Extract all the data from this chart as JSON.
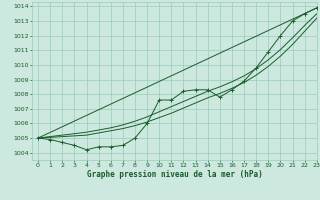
{
  "title": "Graphe pression niveau de la mer (hPa)",
  "bg_color": "#cce8df",
  "grid_color": "#99ccbb",
  "line_color": "#1a5c2a",
  "xlim": [
    -0.5,
    23
  ],
  "ylim": [
    1003.5,
    1014.3
  ],
  "xticks": [
    0,
    1,
    2,
    3,
    4,
    5,
    6,
    7,
    8,
    9,
    10,
    11,
    12,
    13,
    14,
    15,
    16,
    17,
    18,
    19,
    20,
    21,
    22,
    23
  ],
  "yticks": [
    1004,
    1005,
    1006,
    1007,
    1008,
    1009,
    1010,
    1011,
    1012,
    1013,
    1014
  ],
  "series_marker": {
    "x": [
      0,
      1,
      2,
      3,
      4,
      5,
      6,
      7,
      8,
      9,
      10,
      11,
      12,
      13,
      14,
      15,
      16,
      17,
      18,
      19,
      20,
      21,
      22,
      23
    ],
    "y": [
      1005.0,
      1004.9,
      1004.7,
      1004.5,
      1004.2,
      1004.4,
      1004.4,
      1004.5,
      1005.0,
      1006.0,
      1007.6,
      1007.6,
      1008.2,
      1008.3,
      1008.3,
      1007.8,
      1008.3,
      1008.9,
      1009.8,
      1010.9,
      1012.0,
      1013.0,
      1013.5,
      1013.9
    ]
  },
  "series_smooth1": {
    "x": [
      0,
      1,
      2,
      3,
      4,
      5,
      6,
      7,
      8,
      9,
      10,
      11,
      12,
      13,
      14,
      15,
      16,
      17,
      18,
      19,
      20,
      21,
      22,
      23
    ],
    "y": [
      1005.0,
      1005.05,
      1005.1,
      1005.15,
      1005.2,
      1005.35,
      1005.5,
      1005.65,
      1005.85,
      1006.1,
      1006.4,
      1006.7,
      1007.05,
      1007.4,
      1007.75,
      1008.05,
      1008.4,
      1008.8,
      1009.3,
      1009.9,
      1010.6,
      1011.4,
      1012.3,
      1013.2
    ]
  },
  "series_smooth2": {
    "x": [
      0,
      1,
      2,
      3,
      4,
      5,
      6,
      7,
      8,
      9,
      10,
      11,
      12,
      13,
      14,
      15,
      16,
      17,
      18,
      19,
      20,
      21,
      22,
      23
    ],
    "y": [
      1005.0,
      1005.1,
      1005.2,
      1005.3,
      1005.4,
      1005.55,
      1005.7,
      1005.9,
      1006.15,
      1006.45,
      1006.8,
      1007.15,
      1007.5,
      1007.85,
      1008.2,
      1008.5,
      1008.85,
      1009.25,
      1009.75,
      1010.35,
      1011.05,
      1011.85,
      1012.7,
      1013.5
    ]
  },
  "series_straight": {
    "x": [
      0,
      23
    ],
    "y": [
      1005.0,
      1013.9
    ]
  }
}
